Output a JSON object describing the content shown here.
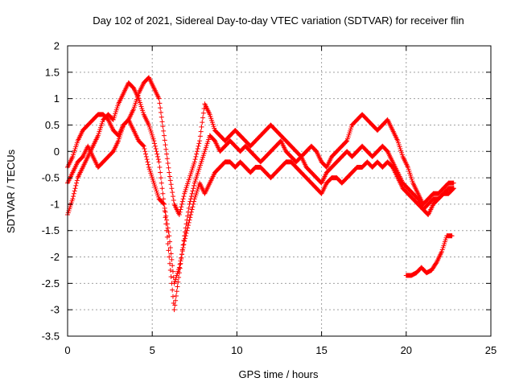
{
  "chart_data": {
    "type": "scatter",
    "title": "Day 102 of 2021, Sidereal Day-to-day VTEC variation (SDTVAR) for receiver flin",
    "xlabel": "GPS time / hours",
    "ylabel": "SDTVAR / TECUs",
    "xlim": [
      0,
      25
    ],
    "ylim": [
      -3.5,
      2
    ],
    "xticks": [
      "0",
      "5",
      "10",
      "15",
      "20",
      "25"
    ],
    "yticks": [
      "2",
      "1.5",
      "1",
      "0.5",
      "0",
      "-0.5",
      "-1",
      "-1.5",
      "-2",
      "-2.5",
      "-3",
      "-3.5"
    ],
    "grid": true,
    "marker": "plus",
    "color": "#ff0000",
    "series": [
      {
        "x": [
          0.0,
          0.3,
          0.6,
          0.9,
          1.2,
          1.5,
          1.8,
          2.1,
          2.4,
          2.7,
          3.0,
          3.3,
          3.6,
          3.9,
          4.2,
          4.5,
          4.8,
          5.1,
          5.4,
          5.7,
          6.0,
          6.3,
          6.6,
          6.9,
          7.2,
          7.5,
          7.8,
          8.1,
          8.4,
          8.7,
          9.0,
          9.3,
          9.6,
          9.9,
          10.2,
          10.5,
          10.8,
          11.1,
          11.4,
          11.7,
          12.0,
          12.3,
          12.6,
          12.9,
          13.2,
          13.5,
          13.8,
          14.1,
          14.4,
          14.7,
          15.0,
          15.3,
          15.6,
          15.9,
          16.2,
          16.5,
          16.8,
          17.1,
          17.4,
          17.7,
          18.0,
          18.3,
          18.6,
          18.9,
          19.2,
          19.5,
          19.8,
          20.1,
          20.4,
          20.7,
          21.0,
          21.3,
          21.6,
          21.9,
          22.2,
          22.5,
          22.8
        ],
        "y": [
          -0.6,
          -0.4,
          -0.2,
          -0.1,
          0.1,
          -0.1,
          -0.3,
          -0.2,
          -0.1,
          0.0,
          0.2,
          0.5,
          0.6,
          0.4,
          0.2,
          0.1,
          -0.3,
          -0.6,
          -0.9,
          -1.0,
          -1.6,
          -2.5,
          -2.2,
          -1.7,
          -1.3,
          -0.9,
          -0.6,
          -0.8,
          -0.6,
          -0.4,
          -0.3,
          -0.2,
          -0.2,
          -0.3,
          -0.2,
          -0.3,
          -0.4,
          -0.3,
          -0.3,
          -0.4,
          -0.5,
          -0.4,
          -0.3,
          -0.2,
          -0.2,
          -0.3,
          -0.4,
          -0.5,
          -0.6,
          -0.7,
          -0.8,
          -0.6,
          -0.5,
          -0.5,
          -0.6,
          -0.5,
          -0.4,
          -0.3,
          -0.3,
          -0.2,
          -0.3,
          -0.2,
          -0.3,
          -0.2,
          -0.3,
          -0.5,
          -0.7,
          -0.8,
          -0.9,
          -1.0,
          -1.1,
          -1.0,
          -0.9,
          -0.9,
          -0.8,
          -0.7,
          -0.7
        ]
      },
      {
        "x": [
          0.0,
          0.3,
          0.6,
          0.9,
          1.2,
          1.5,
          1.8,
          2.1,
          2.4,
          2.7,
          3.0,
          3.3,
          3.6,
          3.9,
          4.2,
          4.5,
          4.8,
          5.1,
          5.4,
          5.7,
          6.0,
          6.3,
          6.6,
          6.9,
          7.2,
          7.5,
          7.8,
          8.1,
          8.4,
          8.7,
          9.0,
          9.3,
          9.6,
          9.9,
          10.2,
          10.5,
          10.8,
          11.1,
          11.4,
          11.7,
          12.0,
          12.3,
          12.6,
          12.9,
          13.2,
          13.5,
          13.8,
          14.1,
          14.4,
          14.7,
          15.0,
          15.3,
          15.6,
          15.9,
          16.2,
          16.5,
          16.8,
          17.1,
          17.4,
          17.7,
          18.0,
          18.3,
          18.6,
          18.9,
          19.2,
          19.5,
          19.8,
          20.1,
          20.4,
          20.7,
          21.0,
          21.3,
          21.6,
          21.9,
          22.2,
          22.5,
          22.8
        ],
        "y": [
          -1.2,
          -0.9,
          -0.5,
          -0.3,
          -0.1,
          0.1,
          0.3,
          0.6,
          0.7,
          0.6,
          0.9,
          1.1,
          1.3,
          1.2,
          1.0,
          0.7,
          0.5,
          0.2,
          -0.2,
          -1.0,
          -2.0,
          -3.0,
          -2.3,
          -1.6,
          -1.0,
          -0.6,
          -0.3,
          0.0,
          0.3,
          0.2,
          0.0,
          0.1,
          0.2,
          0.1,
          0.0,
          0.1,
          0.0,
          -0.1,
          -0.2,
          -0.1,
          0.0,
          0.1,
          0.2,
          0.0,
          -0.1,
          -0.2,
          -0.1,
          -0.3,
          -0.4,
          -0.5,
          -0.6,
          -0.4,
          -0.3,
          -0.2,
          -0.1,
          0.0,
          -0.1,
          0.0,
          0.1,
          0.0,
          -0.1,
          0.0,
          0.1,
          0.0,
          -0.2,
          -0.4,
          -0.6,
          -0.7,
          -0.8,
          -0.9,
          -1.1,
          -1.2,
          -1.0,
          -0.9,
          -0.8,
          -0.8,
          -0.7
        ]
      },
      {
        "x": [
          0.0,
          0.3,
          0.6,
          0.9,
          1.2,
          1.5,
          1.8,
          2.1,
          2.4,
          2.7,
          3.0,
          3.3,
          3.6,
          3.9,
          4.2,
          4.5,
          4.8,
          5.1,
          5.4,
          5.7,
          6.0,
          6.3,
          6.6,
          6.9,
          7.2,
          7.5,
          7.8,
          8.1,
          8.4,
          8.7,
          9.0,
          9.3,
          9.6,
          9.9,
          10.2,
          10.5,
          10.8,
          11.1,
          11.4,
          11.7,
          12.0,
          12.3,
          12.6,
          12.9,
          13.2,
          13.5,
          13.8,
          14.1,
          14.4,
          14.7,
          15.0,
          15.3,
          15.6,
          15.9,
          16.2,
          16.5,
          16.8,
          17.1,
          17.4,
          17.7,
          18.0,
          18.3,
          18.6,
          18.9,
          19.2,
          19.5,
          19.8,
          20.1,
          20.4,
          20.7,
          21.0,
          21.3,
          21.6,
          21.9,
          22.2,
          22.5,
          22.8
        ],
        "y": [
          -0.3,
          -0.1,
          0.2,
          0.4,
          0.5,
          0.6,
          0.7,
          0.7,
          0.6,
          0.4,
          0.3,
          0.5,
          0.6,
          0.8,
          1.1,
          1.3,
          1.4,
          1.2,
          1.0,
          0.3,
          -0.4,
          -1.0,
          -1.2,
          -0.8,
          -0.5,
          -0.2,
          0.2,
          0.9,
          0.7,
          0.4,
          0.3,
          0.2,
          0.3,
          0.4,
          0.3,
          0.2,
          0.1,
          0.2,
          0.3,
          0.4,
          0.5,
          0.4,
          0.3,
          0.2,
          0.1,
          0.0,
          -0.1,
          0.0,
          0.1,
          0.0,
          -0.2,
          -0.3,
          -0.1,
          0.0,
          0.1,
          0.2,
          0.5,
          0.6,
          0.7,
          0.6,
          0.5,
          0.4,
          0.5,
          0.6,
          0.4,
          0.2,
          -0.1,
          -0.3,
          -0.6,
          -0.8,
          -1.0,
          -0.9,
          -0.8,
          -0.8,
          -0.7,
          -0.6,
          -0.6
        ]
      },
      {
        "x": [
          20.0,
          20.3,
          20.6,
          20.9,
          21.2,
          21.5,
          21.8,
          22.1,
          22.4,
          22.7
        ],
        "y": [
          -2.35,
          -2.35,
          -2.3,
          -2.2,
          -2.3,
          -2.25,
          -2.1,
          -1.9,
          -1.6,
          -1.6
        ]
      }
    ]
  }
}
